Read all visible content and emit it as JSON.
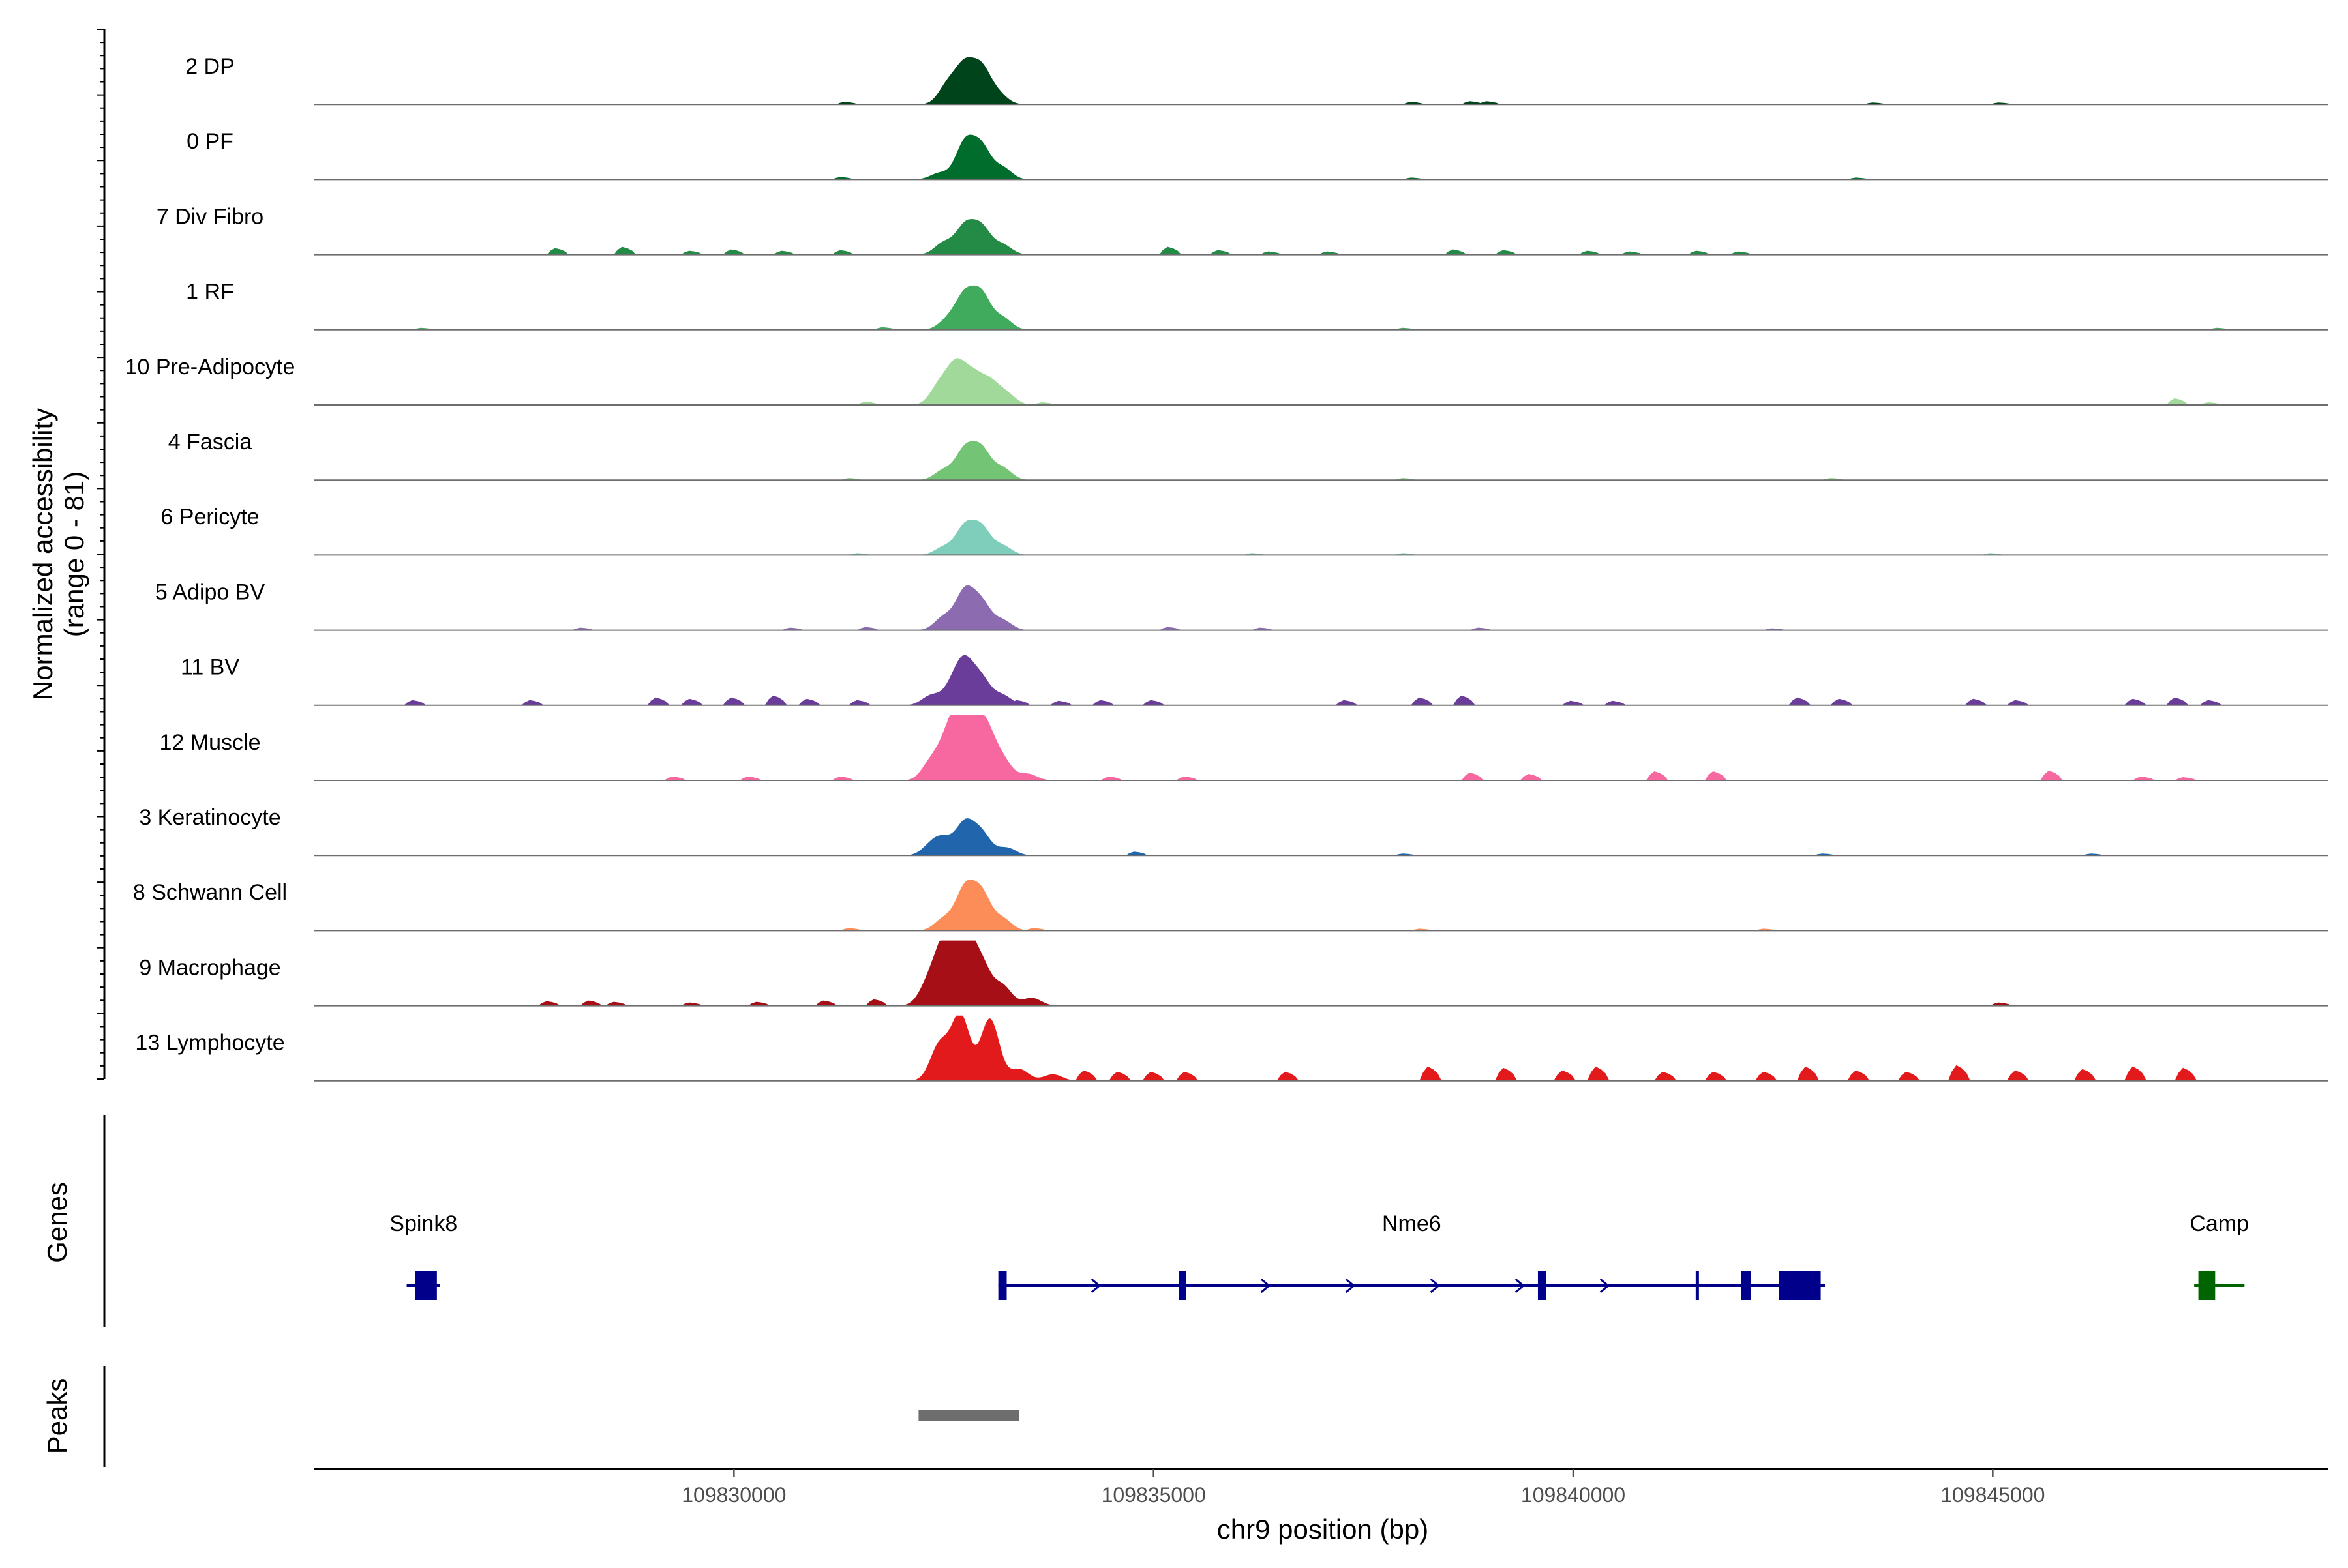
{
  "chart_data": {
    "type": "area",
    "title": "",
    "ylabel_lines": [
      "Normalized accessibility",
      "(range 0 - 81)"
    ],
    "ylim": [
      0,
      81
    ],
    "xlabel": "chr9 position (bp)",
    "xlim": [
      109825000,
      109849000
    ],
    "xticks": [
      109830000,
      109835000,
      109840000,
      109845000
    ],
    "xtick_labels": [
      "109830000",
      "109835000",
      "109840000",
      "109845000"
    ],
    "panel_labels": {
      "genes": "Genes",
      "peaks": "Peaks"
    },
    "tracks": [
      {
        "name": "2 DP",
        "color": "#00441b",
        "peaks": [
          [
            109832550,
            0.3
          ],
          [
            109832750,
            0.55
          ],
          [
            109832950,
            0.52
          ],
          [
            109833150,
            0.15
          ]
        ],
        "noise": [
          [
            109831350,
            0.04
          ],
          [
            109838100,
            0.04
          ],
          [
            109838800,
            0.05
          ],
          [
            109839000,
            0.05
          ],
          [
            109843600,
            0.03
          ],
          [
            109845100,
            0.03
          ]
        ]
      },
      {
        "name": "0 PF",
        "color": "#006d2c",
        "peaks": [
          [
            109832450,
            0.1
          ],
          [
            109832750,
            0.55
          ],
          [
            109832950,
            0.48
          ],
          [
            109833200,
            0.18
          ]
        ],
        "noise": [
          [
            109831300,
            0.04
          ],
          [
            109838100,
            0.03
          ],
          [
            109843400,
            0.03
          ]
        ]
      },
      {
        "name": "7 Div Fibro",
        "color": "#238b45",
        "peaks": [
          [
            109832500,
            0.18
          ],
          [
            109832750,
            0.42
          ],
          [
            109832950,
            0.4
          ],
          [
            109833200,
            0.15
          ]
        ],
        "noise": [
          [
            109827900,
            0.1
          ],
          [
            109828700,
            0.12
          ],
          [
            109829500,
            0.06
          ],
          [
            109830000,
            0.08
          ],
          [
            109830600,
            0.06
          ],
          [
            109831300,
            0.07
          ],
          [
            109835200,
            0.12
          ],
          [
            109835800,
            0.07
          ],
          [
            109836400,
            0.05
          ],
          [
            109837100,
            0.05
          ],
          [
            109838600,
            0.08
          ],
          [
            109839200,
            0.07
          ],
          [
            109840200,
            0.06
          ],
          [
            109840700,
            0.05
          ],
          [
            109841500,
            0.06
          ],
          [
            109842000,
            0.05
          ]
        ]
      },
      {
        "name": "1 RF",
        "color": "#41ab5d",
        "peaks": [
          [
            109832550,
            0.15
          ],
          [
            109832750,
            0.5
          ],
          [
            109832950,
            0.52
          ],
          [
            109833200,
            0.18
          ]
        ],
        "noise": [
          [
            109826300,
            0.03
          ],
          [
            109831800,
            0.04
          ],
          [
            109838000,
            0.03
          ],
          [
            109847700,
            0.03
          ]
        ]
      },
      {
        "name": "10 Pre-Adipocyte",
        "color": "#a1d99b",
        "peaks": [
          [
            109832450,
            0.3
          ],
          [
            109832650,
            0.58
          ],
          [
            109832850,
            0.4
          ],
          [
            109833050,
            0.32
          ],
          [
            109833250,
            0.16
          ]
        ],
        "noise": [
          [
            109831600,
            0.05
          ],
          [
            109833700,
            0.04
          ],
          [
            109847200,
            0.1
          ],
          [
            109847600,
            0.04
          ]
        ]
      },
      {
        "name": "4 Fascia",
        "color": "#74c476",
        "peaks": [
          [
            109832500,
            0.15
          ],
          [
            109832750,
            0.45
          ],
          [
            109832950,
            0.45
          ],
          [
            109833200,
            0.18
          ]
        ],
        "noise": [
          [
            109831400,
            0.03
          ],
          [
            109838000,
            0.03
          ],
          [
            109843100,
            0.03
          ]
        ]
      },
      {
        "name": "6 Pericyte",
        "color": "#7fcdbb",
        "peaks": [
          [
            109832500,
            0.12
          ],
          [
            109832750,
            0.42
          ],
          [
            109832950,
            0.4
          ],
          [
            109833200,
            0.14
          ]
        ],
        "noise": [
          [
            109831500,
            0.03
          ],
          [
            109836200,
            0.03
          ],
          [
            109838000,
            0.03
          ],
          [
            109845000,
            0.03
          ]
        ]
      },
      {
        "name": "5 Adipo BV",
        "color": "#8c6bb1",
        "peaks": [
          [
            109832500,
            0.2
          ],
          [
            109832750,
            0.58
          ],
          [
            109832950,
            0.4
          ],
          [
            109833200,
            0.15
          ]
        ],
        "noise": [
          [
            109828200,
            0.04
          ],
          [
            109830700,
            0.04
          ],
          [
            109831600,
            0.05
          ],
          [
            109835200,
            0.05
          ],
          [
            109836300,
            0.04
          ],
          [
            109838900,
            0.04
          ],
          [
            109842400,
            0.03
          ]
        ]
      },
      {
        "name": "11 BV",
        "color": "#6a3d9a",
        "peaks": [
          [
            109832350,
            0.15
          ],
          [
            109832600,
            0.25
          ],
          [
            109832750,
            0.6
          ],
          [
            109832950,
            0.38
          ],
          [
            109833200,
            0.15
          ]
        ],
        "noise": [
          [
            109826200,
            0.08
          ],
          [
            109827600,
            0.08
          ],
          [
            109829100,
            0.12
          ],
          [
            109829500,
            0.1
          ],
          [
            109830000,
            0.12
          ],
          [
            109830500,
            0.15
          ],
          [
            109830900,
            0.1
          ],
          [
            109831500,
            0.08
          ],
          [
            109833400,
            0.08
          ],
          [
            109833900,
            0.07
          ],
          [
            109834400,
            0.08
          ],
          [
            109835000,
            0.08
          ],
          [
            109837300,
            0.08
          ],
          [
            109838200,
            0.12
          ],
          [
            109838700,
            0.15
          ],
          [
            109840000,
            0.07
          ],
          [
            109840500,
            0.07
          ],
          [
            109842700,
            0.12
          ],
          [
            109843200,
            0.1
          ],
          [
            109844800,
            0.1
          ],
          [
            109845300,
            0.08
          ],
          [
            109846700,
            0.1
          ],
          [
            109847200,
            0.12
          ],
          [
            109847600,
            0.08
          ]
        ]
      },
      {
        "name": "12 Muscle",
        "color": "#f768a1",
        "peaks": [
          [
            109832350,
            0.28
          ],
          [
            109832550,
            0.55
          ],
          [
            109832700,
            0.8
          ],
          [
            109832850,
            0.5
          ],
          [
            109833000,
            0.7
          ],
          [
            109833200,
            0.3
          ],
          [
            109833500,
            0.1
          ]
        ],
        "noise": [
          [
            109829300,
            0.06
          ],
          [
            109830200,
            0.06
          ],
          [
            109831300,
            0.06
          ],
          [
            109834500,
            0.06
          ],
          [
            109835400,
            0.06
          ],
          [
            109838800,
            0.12
          ],
          [
            109839500,
            0.1
          ],
          [
            109841000,
            0.14
          ],
          [
            109841700,
            0.14
          ],
          [
            109845700,
            0.15
          ],
          [
            109846800,
            0.06
          ],
          [
            109847300,
            0.05
          ]
        ]
      },
      {
        "name": "3 Keratinocyte",
        "color": "#2166ac",
        "peaks": [
          [
            109832350,
            0.15
          ],
          [
            109832500,
            0.22
          ],
          [
            109832750,
            0.48
          ],
          [
            109832950,
            0.33
          ],
          [
            109833250,
            0.12
          ]
        ],
        "noise": [
          [
            109834800,
            0.06
          ],
          [
            109838000,
            0.03
          ],
          [
            109843000,
            0.03
          ],
          [
            109846200,
            0.03
          ]
        ]
      },
      {
        "name": "8 Schwann Cell",
        "color": "#fc8d59",
        "peaks": [
          [
            109832500,
            0.18
          ],
          [
            109832750,
            0.62
          ],
          [
            109832950,
            0.55
          ],
          [
            109833200,
            0.18
          ]
        ],
        "noise": [
          [
            109831400,
            0.04
          ],
          [
            109833600,
            0.04
          ],
          [
            109838200,
            0.03
          ],
          [
            109842300,
            0.03
          ]
        ]
      },
      {
        "name": "9 Macrophage",
        "color": "#a50f15",
        "peaks": [
          [
            109832300,
            0.25
          ],
          [
            109832450,
            0.55
          ],
          [
            109832600,
            0.85
          ],
          [
            109832750,
            0.95
          ],
          [
            109832950,
            0.6
          ],
          [
            109833200,
            0.3
          ],
          [
            109833550,
            0.12
          ]
        ],
        "noise": [
          [
            109827800,
            0.07
          ],
          [
            109828300,
            0.08
          ],
          [
            109828600,
            0.06
          ],
          [
            109829500,
            0.05
          ],
          [
            109830300,
            0.06
          ],
          [
            109831100,
            0.08
          ],
          [
            109831700,
            0.1
          ],
          [
            109845100,
            0.05
          ]
        ]
      },
      {
        "name": "13 Lymphocyte",
        "color": "#e31a1c",
        "peaks": [
          [
            109832450,
            0.55
          ],
          [
            109832700,
            1.0
          ],
          [
            109833050,
            0.95
          ],
          [
            109833400,
            0.18
          ],
          [
            109833800,
            0.1
          ]
        ],
        "noise": [
          [
            109834200,
            0.16
          ],
          [
            109834600,
            0.14
          ],
          [
            109835000,
            0.14
          ],
          [
            109835400,
            0.14
          ],
          [
            109836600,
            0.14
          ],
          [
            109838300,
            0.22
          ],
          [
            109839200,
            0.2
          ],
          [
            109839900,
            0.16
          ],
          [
            109840300,
            0.22
          ],
          [
            109841100,
            0.14
          ],
          [
            109841700,
            0.14
          ],
          [
            109842300,
            0.14
          ],
          [
            109842800,
            0.22
          ],
          [
            109843400,
            0.16
          ],
          [
            109844000,
            0.14
          ],
          [
            109844600,
            0.24
          ],
          [
            109845300,
            0.16
          ],
          [
            109846100,
            0.18
          ],
          [
            109846700,
            0.22
          ],
          [
            109847300,
            0.2
          ]
        ]
      }
    ],
    "genes": [
      {
        "name": "Spink8",
        "color": "#00008b",
        "strand": "+",
        "start": 109826100,
        "end": 109826500,
        "exons": [
          [
            109826200,
            109826460
          ]
        ]
      },
      {
        "name": "Nme6",
        "color": "#00008b",
        "strand": "+",
        "start": 109833150,
        "end": 109843000,
        "exons": [
          [
            109833150,
            109833250
          ],
          [
            109835300,
            109835390
          ],
          [
            109839580,
            109839680
          ],
          [
            109841460,
            109841480
          ],
          [
            109842000,
            109842120
          ],
          [
            109842450,
            109842950
          ]
        ]
      },
      {
        "name": "Camp",
        "color": "#006400",
        "strand": "+",
        "start": 109847400,
        "end": 109848000,
        "exons": [
          [
            109847450,
            109847650
          ]
        ]
      }
    ],
    "peaks_track": [
      {
        "start": 109832200,
        "end": 109833400,
        "color": "#6e6e6e"
      }
    ]
  }
}
